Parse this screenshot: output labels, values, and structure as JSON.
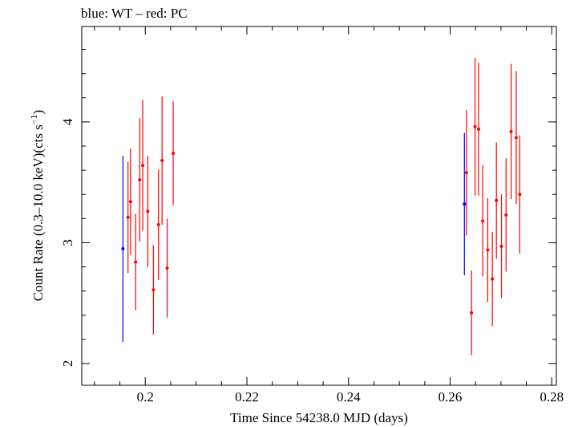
{
  "chart_data": {
    "type": "scatter",
    "title": "blue: WT – red: PC",
    "xlabel": "Time Since 54238.0 MJD (days)",
    "ylabel_main": "Count Rate (0.3–10.0 keV)(cts s",
    "ylabel_sup": "−1",
    "ylabel_end": ")",
    "xlim": [
      0.1875,
      0.2809
    ],
    "ylim": [
      1.82,
      4.79
    ],
    "x_major_ticks": [
      0.2,
      0.22,
      0.24,
      0.26,
      0.28
    ],
    "x_tick_labels": [
      "0.2",
      "0.22",
      "0.24",
      "0.26",
      "0.28"
    ],
    "x_minor_step": 0.005,
    "y_major_ticks": [
      2,
      3,
      4
    ],
    "y_tick_labels": [
      "2",
      "3",
      "4"
    ],
    "y_minor_step": 0.2,
    "colors": {
      "WT": "#0000ff",
      "PC": "#ff0000"
    },
    "series": [
      {
        "mode": "WT",
        "points": [
          {
            "x": 0.1956,
            "y": 2.95,
            "err": 0.77
          },
          {
            "x": 0.2628,
            "y": 3.32,
            "err": 0.59
          }
        ]
      },
      {
        "mode": "PC",
        "points": [
          {
            "x": 0.1966,
            "y": 3.21,
            "err": 0.46
          },
          {
            "x": 0.1971,
            "y": 3.34,
            "err": 0.44
          },
          {
            "x": 0.1981,
            "y": 2.84,
            "err": 0.4
          },
          {
            "x": 0.1989,
            "y": 3.52,
            "err": 0.51
          },
          {
            "x": 0.1995,
            "y": 3.64,
            "err": 0.54
          },
          {
            "x": 0.2005,
            "y": 3.26,
            "err": 0.46
          },
          {
            "x": 0.2016,
            "y": 2.61,
            "err": 0.37
          },
          {
            "x": 0.2026,
            "y": 3.15,
            "err": 0.46
          },
          {
            "x": 0.2033,
            "y": 3.68,
            "err": 0.53
          },
          {
            "x": 0.2043,
            "y": 2.79,
            "err": 0.41
          },
          {
            "x": 0.2055,
            "y": 3.74,
            "err": 0.43
          },
          {
            "x": 0.2632,
            "y": 3.58,
            "err": 0.52
          },
          {
            "x": 0.2642,
            "y": 2.42,
            "err": 0.35
          },
          {
            "x": 0.2649,
            "y": 3.96,
            "err": 0.57
          },
          {
            "x": 0.2656,
            "y": 3.94,
            "err": 0.55
          },
          {
            "x": 0.2664,
            "y": 3.18,
            "err": 0.46
          },
          {
            "x": 0.2674,
            "y": 2.94,
            "err": 0.43
          },
          {
            "x": 0.2683,
            "y": 2.7,
            "err": 0.39
          },
          {
            "x": 0.2691,
            "y": 3.35,
            "err": 0.48
          },
          {
            "x": 0.2701,
            "y": 2.97,
            "err": 0.43
          },
          {
            "x": 0.271,
            "y": 3.23,
            "err": 0.47
          },
          {
            "x": 0.272,
            "y": 3.92,
            "err": 0.56
          },
          {
            "x": 0.273,
            "y": 3.87,
            "err": 0.55
          },
          {
            "x": 0.2737,
            "y": 3.4,
            "err": 0.49
          }
        ]
      }
    ]
  }
}
